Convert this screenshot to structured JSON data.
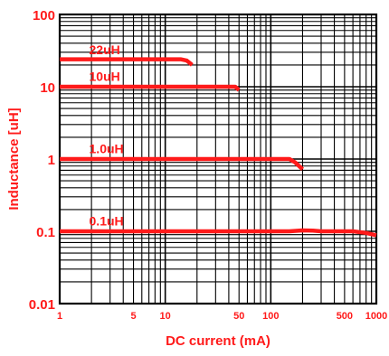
{
  "chart_data": {
    "type": "line",
    "xlabel": "DC current (mA)",
    "ylabel": "Inductance [uH]",
    "x_scale": "log",
    "y_scale": "log",
    "xlim": [
      1,
      1000
    ],
    "ylim": [
      0.01,
      100
    ],
    "grid": true,
    "x_ticks": [
      {
        "value": 1,
        "label": "1"
      },
      {
        "value": 5,
        "label": "5"
      },
      {
        "value": 10,
        "label": "10"
      },
      {
        "value": 50,
        "label": "50"
      },
      {
        "value": 100,
        "label": "100"
      },
      {
        "value": 500,
        "label": "500"
      },
      {
        "value": 1000,
        "label": "1000"
      }
    ],
    "y_ticks": [
      {
        "value": 0.01,
        "label": "0.01"
      },
      {
        "value": 0.1,
        "label": "0.1"
      },
      {
        "value": 1,
        "label": "1"
      },
      {
        "value": 10,
        "label": "10"
      },
      {
        "value": 100,
        "label": "100"
      }
    ],
    "series": [
      {
        "name": "22uH",
        "label_at": {
          "x": 1.9,
          "y": 28
        },
        "points": [
          [
            1,
            24
          ],
          [
            14,
            24
          ],
          [
            16,
            23
          ],
          [
            18,
            20
          ]
        ]
      },
      {
        "name": "10uH",
        "label_at": {
          "x": 1.9,
          "y": 12
        },
        "points": [
          [
            1,
            10
          ],
          [
            46,
            10
          ],
          [
            50,
            9.0
          ]
        ]
      },
      {
        "name": "1.0uH",
        "label_at": {
          "x": 1.9,
          "y": 1.2
        },
        "points": [
          [
            1,
            1.0
          ],
          [
            150,
            1.0
          ],
          [
            170,
            0.9
          ],
          [
            200,
            0.72
          ]
        ]
      },
      {
        "name": "0.1uH",
        "label_at": {
          "x": 1.9,
          "y": 0.12
        },
        "points": [
          [
            1,
            0.1
          ],
          [
            150,
            0.1
          ],
          [
            200,
            0.103
          ],
          [
            250,
            0.102
          ],
          [
            300,
            0.1
          ],
          [
            600,
            0.1
          ],
          [
            800,
            0.095
          ],
          [
            1000,
            0.088
          ]
        ]
      }
    ],
    "colors": {
      "series": "#ff1a1a",
      "axis_text": "#ff1a1a",
      "grid": "#000000"
    }
  }
}
